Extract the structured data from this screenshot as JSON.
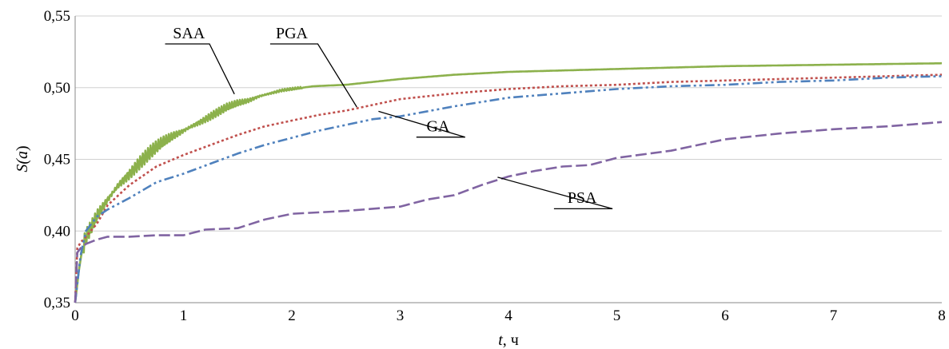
{
  "chart_data": {
    "type": "line",
    "xlabel_var": "t",
    "xlabel_unit": ", ч",
    "ylabel_func": "S(",
    "ylabel_arg": "a",
    "ylabel_close": ")",
    "xlim": [
      0,
      8
    ],
    "ylim": [
      0.35,
      0.55
    ],
    "x_ticks": [
      0,
      1,
      2,
      3,
      4,
      5,
      6,
      7,
      8
    ],
    "x_tick_labels": [
      "0",
      "1",
      "2",
      "3",
      "4",
      "5",
      "6",
      "7",
      "8"
    ],
    "y_ticks": [
      0.35,
      0.4,
      0.45,
      0.5,
      0.55
    ],
    "y_tick_labels": [
      "0,35",
      "0,40",
      "0,45",
      "0,50",
      "0,55"
    ],
    "grid": "horizontal",
    "series": [
      {
        "name": "SAA",
        "color": "#8cb14c",
        "dash": "solid",
        "noisy": true,
        "x": [
          0,
          0.03,
          0.06,
          0.1,
          0.15,
          0.2,
          0.3,
          0.4,
          0.5,
          0.6,
          0.7,
          0.8,
          0.9,
          1.0,
          1.1,
          1.2,
          1.3,
          1.4,
          1.5,
          1.6,
          1.7,
          1.8,
          1.9,
          2.0,
          2.1,
          2.2,
          2.5,
          3.0,
          3.5,
          4.0,
          5.0,
          6.0,
          7.0,
          8.0
        ],
        "values": [
          0.35,
          0.37,
          0.385,
          0.395,
          0.402,
          0.41,
          0.422,
          0.432,
          0.44,
          0.448,
          0.455,
          0.461,
          0.466,
          0.47,
          0.474,
          0.478,
          0.482,
          0.486,
          0.489,
          0.491,
          0.494,
          0.496,
          0.498,
          0.499,
          0.5,
          0.501,
          0.502,
          0.506,
          0.509,
          0.511,
          0.513,
          0.515,
          0.516,
          0.517
        ]
      },
      {
        "name": "PGA",
        "color": "#c0504d",
        "dash": "3,3",
        "noisy": false,
        "x": [
          0,
          0.02,
          0.05,
          0.1,
          0.2,
          0.3,
          0.5,
          0.75,
          1.0,
          1.25,
          1.5,
          1.75,
          2.0,
          2.25,
          2.5,
          2.75,
          3.0,
          3.5,
          4.0,
          4.5,
          5.0,
          5.5,
          6.0,
          6.5,
          7.0,
          7.5,
          8.0
        ],
        "values": [
          0.35,
          0.388,
          0.392,
          0.396,
          0.405,
          0.418,
          0.432,
          0.445,
          0.453,
          0.46,
          0.467,
          0.473,
          0.477,
          0.481,
          0.484,
          0.488,
          0.492,
          0.496,
          0.499,
          0.501,
          0.502,
          0.504,
          0.505,
          0.506,
          0.507,
          0.508,
          0.509
        ]
      },
      {
        "name": "GA",
        "color": "#4f81bd",
        "dash": "12,4,3,4,3,4",
        "noisy": false,
        "x": [
          0,
          0.05,
          0.1,
          0.2,
          0.3,
          0.5,
          0.75,
          1.0,
          1.25,
          1.5,
          1.75,
          2.0,
          2.25,
          2.5,
          2.75,
          3.0,
          3.5,
          4.0,
          4.5,
          5.0,
          5.5,
          6.0,
          6.5,
          7.0,
          7.5,
          8.0
        ],
        "values": [
          0.35,
          0.383,
          0.4,
          0.41,
          0.415,
          0.423,
          0.434,
          0.44,
          0.447,
          0.454,
          0.46,
          0.465,
          0.47,
          0.474,
          0.478,
          0.48,
          0.487,
          0.493,
          0.496,
          0.499,
          0.501,
          0.502,
          0.504,
          0.505,
          0.507,
          0.508
        ]
      },
      {
        "name": "PSA",
        "color": "#8064a2",
        "dash": "14,5",
        "noisy": false,
        "x": [
          0,
          0.02,
          0.05,
          0.1,
          0.2,
          0.3,
          0.5,
          0.75,
          1.0,
          1.2,
          1.5,
          1.75,
          2.0,
          2.5,
          3.0,
          3.25,
          3.5,
          3.75,
          4.0,
          4.25,
          4.5,
          4.75,
          5.0,
          5.5,
          6.0,
          6.5,
          7.0,
          7.5,
          8.0
        ],
        "values": [
          0.35,
          0.385,
          0.388,
          0.391,
          0.394,
          0.396,
          0.396,
          0.397,
          0.397,
          0.401,
          0.402,
          0.408,
          0.412,
          0.414,
          0.417,
          0.422,
          0.425,
          0.432,
          0.438,
          0.442,
          0.445,
          0.446,
          0.451,
          0.456,
          0.464,
          0.468,
          0.471,
          0.473,
          0.476
        ]
      }
    ],
    "annotations": [
      {
        "label": "SAA",
        "text_x": 1.05,
        "text_y": 0.5345,
        "bar_x0": 0.83,
        "bar_x1": 1.24,
        "bar_y": 0.5305,
        "tip_x": 1.47,
        "tip_y": 0.4955
      },
      {
        "label": "PGA",
        "text_x": 2.0,
        "text_y": 0.5345,
        "bar_x0": 1.8,
        "bar_x1": 2.24,
        "bar_y": 0.5305,
        "tip_x": 2.6,
        "tip_y": 0.4865
      },
      {
        "label": "GA",
        "text_x": 3.35,
        "text_y": 0.4695,
        "bar_x0": 3.15,
        "bar_x1": 3.6,
        "bar_y": 0.4655,
        "tip_x": 2.8,
        "tip_y": 0.4835
      },
      {
        "label": "PSA",
        "text_x": 4.68,
        "text_y": 0.4195,
        "bar_x0": 4.42,
        "bar_x1": 4.96,
        "bar_y": 0.4155,
        "tip_x": 3.9,
        "tip_y": 0.4375
      }
    ]
  }
}
